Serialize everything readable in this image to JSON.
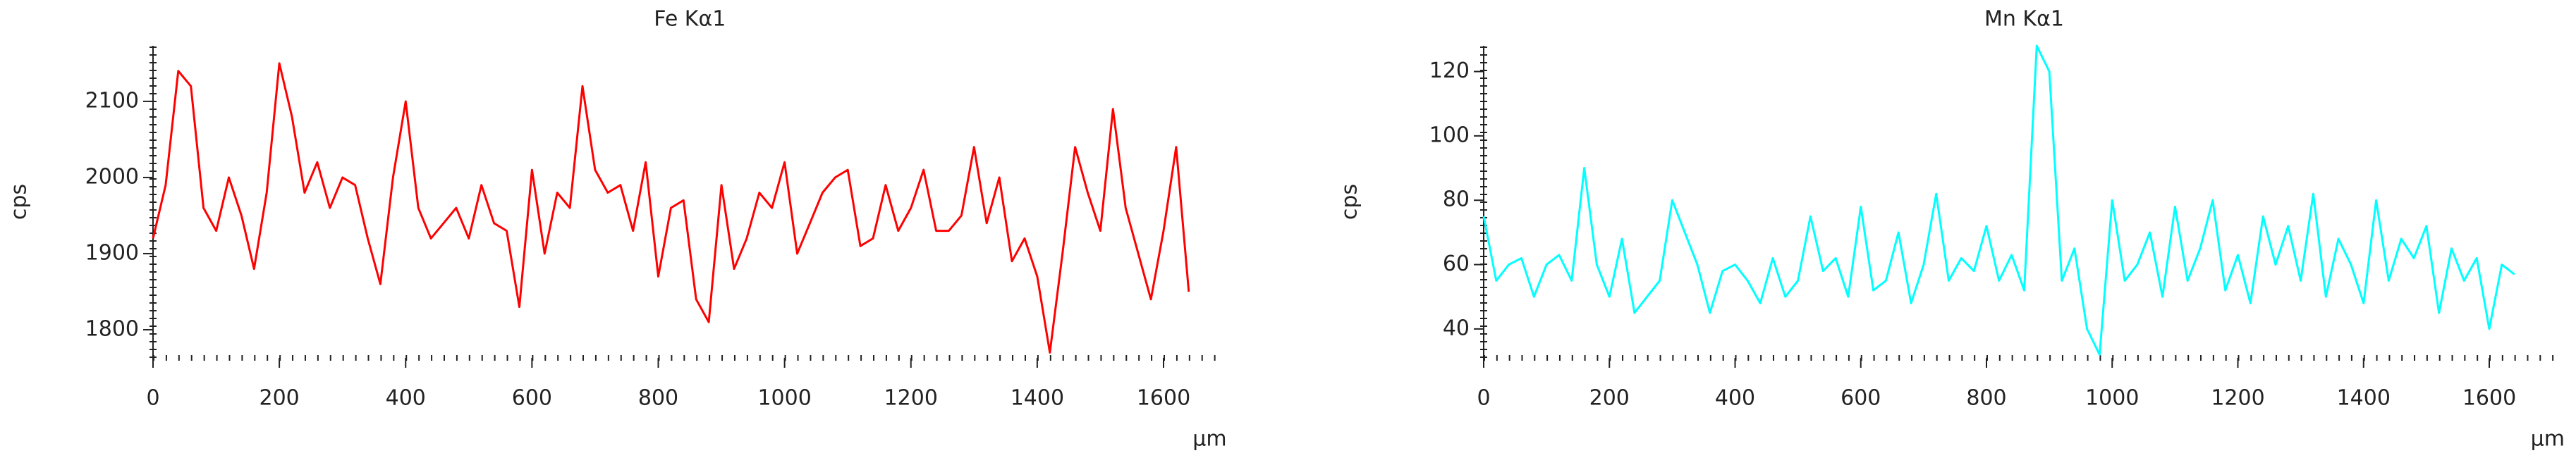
{
  "chart_data": [
    {
      "type": "line",
      "title": "Fe Kα1",
      "y_label": "cps",
      "x_label": "µm",
      "color": "#ff0000",
      "xlim": [
        0,
        1700
      ],
      "xticks": [
        0,
        200,
        400,
        600,
        800,
        1000,
        1200,
        1400,
        1600
      ],
      "ylim": [
        1763,
        2173
      ],
      "yticks": [
        1800,
        1900,
        2000,
        2100
      ],
      "x": [
        0,
        20,
        40,
        60,
        80,
        100,
        120,
        140,
        160,
        180,
        200,
        220,
        240,
        260,
        280,
        300,
        320,
        340,
        360,
        380,
        400,
        420,
        440,
        460,
        480,
        500,
        520,
        540,
        560,
        580,
        600,
        620,
        640,
        660,
        680,
        700,
        720,
        740,
        760,
        780,
        800,
        820,
        840,
        860,
        880,
        900,
        920,
        940,
        960,
        980,
        1000,
        1020,
        1040,
        1060,
        1080,
        1100,
        1120,
        1140,
        1160,
        1180,
        1200,
        1220,
        1240,
        1260,
        1280,
        1300,
        1320,
        1340,
        1360,
        1380,
        1400,
        1420,
        1440,
        1460,
        1480,
        1500,
        1520,
        1540,
        1560,
        1580,
        1600,
        1620,
        1640
      ],
      "values": [
        1920,
        1990,
        2140,
        2120,
        1960,
        1930,
        2000,
        1950,
        1880,
        1980,
        2150,
        2080,
        1980,
        2020,
        1960,
        2000,
        1990,
        1920,
        1860,
        2000,
        2100,
        1960,
        1920,
        1940,
        1960,
        1920,
        1990,
        1940,
        1930,
        1830,
        2010,
        1900,
        1980,
        1960,
        2120,
        2010,
        1980,
        1990,
        1930,
        2020,
        1870,
        1960,
        1970,
        1840,
        1810,
        1990,
        1880,
        1920,
        1980,
        1960,
        2020,
        1900,
        1940,
        1980,
        2000,
        2010,
        1910,
        1920,
        1990,
        1930,
        1960,
        2010,
        1930,
        1930,
        1950,
        2040,
        1940,
        2000,
        1890,
        1920,
        1870,
        1770,
        1900,
        2040,
        1980,
        1930,
        2090,
        1960,
        1900,
        1840,
        1930,
        2040,
        1850
      ]
    },
    {
      "type": "line",
      "title": "Mn Kα1",
      "y_label": "cps",
      "x_label": "µm",
      "color": "#00ffff",
      "xlim": [
        0,
        1720
      ],
      "xticks": [
        0,
        200,
        400,
        600,
        800,
        1000,
        1200,
        1400,
        1600
      ],
      "ylim": [
        31,
        128
      ],
      "yticks": [
        40,
        60,
        80,
        100,
        120
      ],
      "x": [
        0,
        20,
        40,
        60,
        80,
        100,
        120,
        140,
        160,
        180,
        200,
        220,
        240,
        260,
        280,
        300,
        320,
        340,
        360,
        380,
        400,
        420,
        440,
        460,
        480,
        500,
        520,
        540,
        560,
        580,
        600,
        620,
        640,
        660,
        680,
        700,
        720,
        740,
        760,
        780,
        800,
        820,
        840,
        860,
        880,
        900,
        920,
        940,
        960,
        980,
        1000,
        1020,
        1040,
        1060,
        1080,
        1100,
        1120,
        1140,
        1160,
        1180,
        1200,
        1220,
        1240,
        1260,
        1280,
        1300,
        1320,
        1340,
        1360,
        1380,
        1400,
        1420,
        1440,
        1460,
        1480,
        1500,
        1520,
        1540,
        1560,
        1580,
        1600,
        1620,
        1640
      ],
      "values": [
        75,
        55,
        60,
        62,
        50,
        60,
        63,
        55,
        90,
        60,
        50,
        68,
        45,
        50,
        55,
        80,
        70,
        60,
        45,
        58,
        60,
        55,
        48,
        62,
        50,
        55,
        75,
        58,
        62,
        50,
        78,
        52,
        55,
        70,
        48,
        60,
        82,
        55,
        62,
        58,
        72,
        55,
        63,
        52,
        128,
        120,
        55,
        65,
        40,
        32,
        80,
        55,
        60,
        70,
        50,
        78,
        55,
        65,
        80,
        52,
        63,
        48,
        75,
        60,
        72,
        55,
        82,
        50,
        68,
        60,
        48,
        80,
        55,
        68,
        62,
        72,
        45,
        65,
        55,
        62,
        40,
        60,
        57
      ]
    }
  ]
}
